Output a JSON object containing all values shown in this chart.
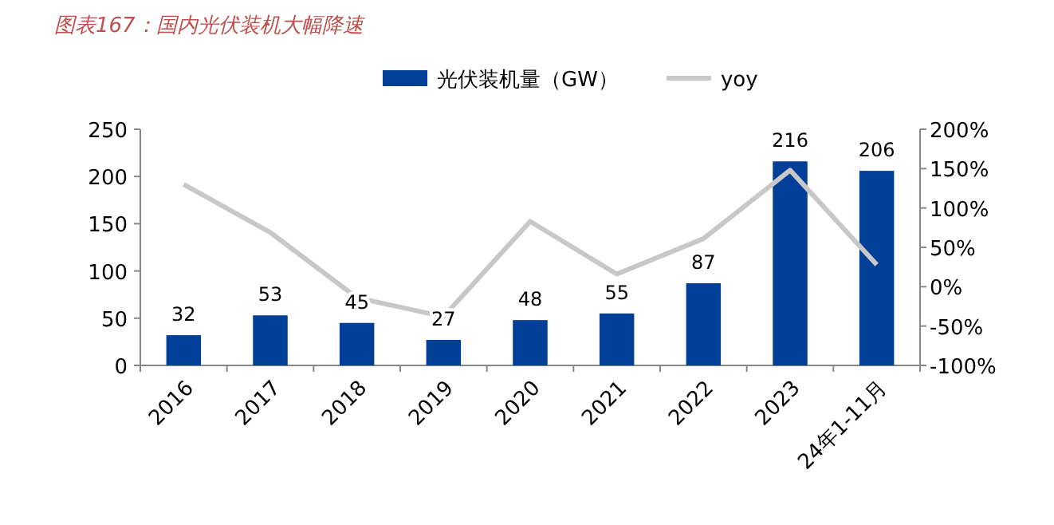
{
  "chart_data": {
    "type": "bar",
    "title": "图表167：国内光伏装机大幅降速",
    "categories": [
      "2016",
      "2017",
      "2018",
      "2019",
      "2020",
      "2021",
      "2022",
      "2023",
      "24年1-11月"
    ],
    "series": [
      {
        "name": "光伏装机量（GW）",
        "color": "#003f98",
        "values": [
          32,
          53,
          45,
          27,
          48,
          55,
          87,
          216,
          206
        ],
        "value_labels": [
          "32",
          "53",
          "45",
          "27",
          "48",
          "55",
          "87",
          "216",
          "206"
        ]
      },
      {
        "name": "yoy",
        "type": "line",
        "axis": "y2",
        "color": "#c8c8c8",
        "values": [
          130,
          69,
          -14,
          -38,
          83,
          16,
          61,
          148,
          28
        ]
      }
    ],
    "ylim": [
      0,
      250
    ],
    "yticks": [
      0,
      50,
      100,
      150,
      200,
      250
    ],
    "y2lim": [
      -100,
      200
    ],
    "y2ticks": [
      {
        "value": -100,
        "label": "-100%"
      },
      {
        "value": -50,
        "label": "-50%"
      },
      {
        "value": 0,
        "label": "0%"
      },
      {
        "value": 50,
        "label": "50%"
      },
      {
        "value": 100,
        "label": "100%"
      },
      {
        "value": 150,
        "label": "150%"
      },
      {
        "value": 200,
        "label": "200%"
      }
    ],
    "legend": "top",
    "grid": false
  }
}
